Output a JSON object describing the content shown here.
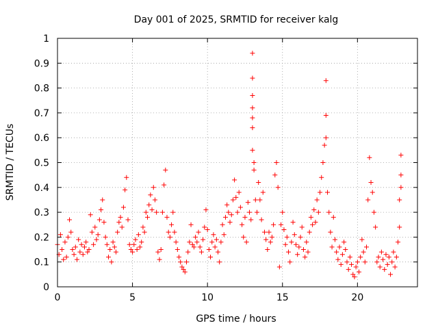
{
  "chart_data": {
    "type": "scatter",
    "title": "Day 001 of 2025, SRMTID for receiver kalg",
    "xlabel": "GPS time / hours",
    "ylabel": "SRMTID / TECUs",
    "xlim": [
      0,
      24
    ],
    "ylim": [
      0,
      1
    ],
    "x_ticks": [
      0,
      5,
      10,
      15,
      20
    ],
    "x_tick_labels": [
      "0",
      "5",
      "10",
      "15",
      "20"
    ],
    "y_ticks": [
      0,
      0.1,
      0.2,
      0.3,
      0.4,
      0.5,
      0.6,
      0.7,
      0.8,
      0.9,
      1
    ],
    "y_tick_labels": [
      "0",
      "0.1",
      "0.2",
      "0.3",
      "0.4",
      "0.5",
      "0.6",
      "0.7",
      "0.8",
      "0.9",
      "1"
    ],
    "grid": true,
    "marker": "+",
    "color": "#ff0000",
    "series": [
      {
        "name": "kalg",
        "points": [
          [
            0.0,
            0.17
          ],
          [
            0.1,
            0.13
          ],
          [
            0.2,
            0.21
          ],
          [
            0.3,
            0.15
          ],
          [
            0.4,
            0.11
          ],
          [
            0.5,
            0.18
          ],
          [
            0.6,
            0.12
          ],
          [
            0.7,
            0.2
          ],
          [
            0.8,
            0.27
          ],
          [
            0.9,
            0.22
          ],
          [
            1.0,
            0.15
          ],
          [
            1.1,
            0.13
          ],
          [
            1.2,
            0.16
          ],
          [
            1.3,
            0.11
          ],
          [
            1.4,
            0.19
          ],
          [
            1.5,
            0.14
          ],
          [
            1.6,
            0.17
          ],
          [
            1.7,
            0.13
          ],
          [
            1.8,
            0.16
          ],
          [
            1.9,
            0.18
          ],
          [
            2.0,
            0.14
          ],
          [
            2.1,
            0.15
          ],
          [
            2.2,
            0.29
          ],
          [
            2.3,
            0.22
          ],
          [
            2.4,
            0.17
          ],
          [
            2.5,
            0.24
          ],
          [
            2.6,
            0.19
          ],
          [
            2.7,
            0.21
          ],
          [
            2.8,
            0.27
          ],
          [
            2.9,
            0.31
          ],
          [
            3.0,
            0.35
          ],
          [
            3.1,
            0.26
          ],
          [
            3.2,
            0.2
          ],
          [
            3.3,
            0.17
          ],
          [
            3.4,
            0.12
          ],
          [
            3.5,
            0.15
          ],
          [
            3.6,
            0.1
          ],
          [
            3.7,
            0.18
          ],
          [
            3.8,
            0.16
          ],
          [
            3.9,
            0.14
          ],
          [
            4.0,
            0.22
          ],
          [
            4.1,
            0.26
          ],
          [
            4.2,
            0.28
          ],
          [
            4.3,
            0.24
          ],
          [
            4.4,
            0.32
          ],
          [
            4.5,
            0.39
          ],
          [
            4.6,
            0.44
          ],
          [
            4.7,
            0.27
          ],
          [
            4.8,
            0.17
          ],
          [
            4.9,
            0.15
          ],
          [
            5.0,
            0.14
          ],
          [
            5.1,
            0.17
          ],
          [
            5.2,
            0.19
          ],
          [
            5.3,
            0.15
          ],
          [
            5.4,
            0.21
          ],
          [
            5.5,
            0.16
          ],
          [
            5.6,
            0.18
          ],
          [
            5.7,
            0.24
          ],
          [
            5.8,
            0.22
          ],
          [
            5.9,
            0.3
          ],
          [
            6.0,
            0.28
          ],
          [
            6.1,
            0.33
          ],
          [
            6.2,
            0.37
          ],
          [
            6.3,
            0.31
          ],
          [
            6.4,
            0.4
          ],
          [
            6.5,
            0.35
          ],
          [
            6.6,
            0.3
          ],
          [
            6.7,
            0.14
          ],
          [
            6.8,
            0.11
          ],
          [
            6.9,
            0.15
          ],
          [
            7.0,
            0.3
          ],
          [
            7.1,
            0.41
          ],
          [
            7.2,
            0.47
          ],
          [
            7.3,
            0.28
          ],
          [
            7.4,
            0.22
          ],
          [
            7.5,
            0.2
          ],
          [
            7.6,
            0.25
          ],
          [
            7.7,
            0.3
          ],
          [
            7.8,
            0.22
          ],
          [
            7.9,
            0.18
          ],
          [
            8.0,
            0.15
          ],
          [
            8.1,
            0.12
          ],
          [
            8.2,
            0.1
          ],
          [
            8.3,
            0.08
          ],
          [
            8.4,
            0.07
          ],
          [
            8.5,
            0.06
          ],
          [
            8.6,
            0.1
          ],
          [
            8.7,
            0.14
          ],
          [
            8.8,
            0.18
          ],
          [
            8.9,
            0.25
          ],
          [
            9.0,
            0.17
          ],
          [
            9.1,
            0.16
          ],
          [
            9.2,
            0.2
          ],
          [
            9.3,
            0.18
          ],
          [
            9.4,
            0.22
          ],
          [
            9.5,
            0.16
          ],
          [
            9.6,
            0.14
          ],
          [
            9.7,
            0.19
          ],
          [
            9.8,
            0.24
          ],
          [
            9.9,
            0.31
          ],
          [
            10.0,
            0.23
          ],
          [
            10.1,
            0.15
          ],
          [
            10.2,
            0.12
          ],
          [
            10.3,
            0.18
          ],
          [
            10.4,
            0.21
          ],
          [
            10.5,
            0.16
          ],
          [
            10.6,
            0.19
          ],
          [
            10.7,
            0.14
          ],
          [
            10.8,
            0.1
          ],
          [
            10.9,
            0.18
          ],
          [
            11.0,
            0.25
          ],
          [
            11.1,
            0.21
          ],
          [
            11.2,
            0.28
          ],
          [
            11.3,
            0.33
          ],
          [
            11.4,
            0.3
          ],
          [
            11.5,
            0.26
          ],
          [
            11.6,
            0.29
          ],
          [
            11.7,
            0.35
          ],
          [
            11.8,
            0.43
          ],
          [
            11.9,
            0.36
          ],
          [
            12.0,
            0.3
          ],
          [
            12.1,
            0.38
          ],
          [
            12.2,
            0.32
          ],
          [
            12.3,
            0.25
          ],
          [
            12.4,
            0.2
          ],
          [
            12.5,
            0.28
          ],
          [
            12.6,
            0.18
          ],
          [
            12.7,
            0.34
          ],
          [
            12.8,
            0.3
          ],
          [
            12.9,
            0.27
          ],
          [
            13.0,
            0.94
          ],
          [
            13.0,
            0.84
          ],
          [
            13.0,
            0.77
          ],
          [
            13.0,
            0.72
          ],
          [
            13.0,
            0.68
          ],
          [
            13.0,
            0.64
          ],
          [
            13.0,
            0.55
          ],
          [
            13.1,
            0.5
          ],
          [
            13.1,
            0.47
          ],
          [
            13.2,
            0.35
          ],
          [
            13.3,
            0.3
          ],
          [
            13.4,
            0.42
          ],
          [
            13.5,
            0.35
          ],
          [
            13.6,
            0.27
          ],
          [
            13.7,
            0.38
          ],
          [
            13.8,
            0.22
          ],
          [
            13.9,
            0.19
          ],
          [
            14.0,
            0.15
          ],
          [
            14.1,
            0.22
          ],
          [
            14.2,
            0.18
          ],
          [
            14.3,
            0.2
          ],
          [
            14.4,
            0.25
          ],
          [
            14.5,
            0.45
          ],
          [
            14.6,
            0.5
          ],
          [
            14.7,
            0.4
          ],
          [
            14.8,
            0.08
          ],
          [
            14.9,
            0.25
          ],
          [
            15.0,
            0.3
          ],
          [
            15.1,
            0.23
          ],
          [
            15.2,
            0.17
          ],
          [
            15.3,
            0.2
          ],
          [
            15.4,
            0.14
          ],
          [
            15.5,
            0.1
          ],
          [
            15.6,
            0.18
          ],
          [
            15.7,
            0.26
          ],
          [
            15.8,
            0.21
          ],
          [
            15.9,
            0.17
          ],
          [
            16.0,
            0.13
          ],
          [
            16.1,
            0.16
          ],
          [
            16.2,
            0.2
          ],
          [
            16.3,
            0.24
          ],
          [
            16.4,
            0.15
          ],
          [
            16.5,
            0.12
          ],
          [
            16.6,
            0.18
          ],
          [
            16.7,
            0.14
          ],
          [
            16.8,
            0.22
          ],
          [
            16.9,
            0.28
          ],
          [
            17.0,
            0.25
          ],
          [
            17.1,
            0.31
          ],
          [
            17.2,
            0.26
          ],
          [
            17.3,
            0.35
          ],
          [
            17.4,
            0.3
          ],
          [
            17.5,
            0.38
          ],
          [
            17.6,
            0.44
          ],
          [
            17.7,
            0.5
          ],
          [
            17.8,
            0.57
          ],
          [
            17.9,
            0.6
          ],
          [
            17.9,
            0.69
          ],
          [
            17.9,
            0.83
          ],
          [
            18.0,
            0.38
          ],
          [
            18.1,
            0.3
          ],
          [
            18.2,
            0.22
          ],
          [
            18.3,
            0.16
          ],
          [
            18.4,
            0.28
          ],
          [
            18.5,
            0.19
          ],
          [
            18.6,
            0.14
          ],
          [
            18.7,
            0.11
          ],
          [
            18.8,
            0.16
          ],
          [
            18.9,
            0.09
          ],
          [
            19.0,
            0.13
          ],
          [
            19.1,
            0.18
          ],
          [
            19.2,
            0.15
          ],
          [
            19.3,
            0.1
          ],
          [
            19.4,
            0.07
          ],
          [
            19.5,
            0.12
          ],
          [
            19.6,
            0.09
          ],
          [
            19.7,
            0.05
          ],
          [
            19.8,
            0.04
          ],
          [
            19.9,
            0.08
          ],
          [
            20.0,
            0.1
          ],
          [
            20.1,
            0.06
          ],
          [
            20.2,
            0.12
          ],
          [
            20.3,
            0.19
          ],
          [
            20.4,
            0.14
          ],
          [
            20.5,
            0.1
          ],
          [
            20.6,
            0.16
          ],
          [
            20.7,
            0.35
          ],
          [
            20.8,
            0.52
          ],
          [
            20.9,
            0.42
          ],
          [
            21.0,
            0.38
          ],
          [
            21.1,
            0.3
          ],
          [
            21.2,
            0.24
          ],
          [
            21.3,
            0.1
          ],
          [
            21.4,
            0.12
          ],
          [
            21.5,
            0.08
          ],
          [
            21.6,
            0.14
          ],
          [
            21.7,
            0.11
          ],
          [
            21.8,
            0.07
          ],
          [
            21.9,
            0.13
          ],
          [
            22.0,
            0.09
          ],
          [
            22.1,
            0.12
          ],
          [
            22.2,
            0.05
          ],
          [
            22.3,
            0.1
          ],
          [
            22.4,
            0.14
          ],
          [
            22.5,
            0.08
          ],
          [
            22.6,
            0.12
          ],
          [
            22.7,
            0.18
          ],
          [
            22.8,
            0.24
          ],
          [
            22.8,
            0.35
          ],
          [
            22.9,
            0.53
          ],
          [
            22.9,
            0.45
          ],
          [
            22.9,
            0.4
          ]
        ]
      }
    ]
  }
}
